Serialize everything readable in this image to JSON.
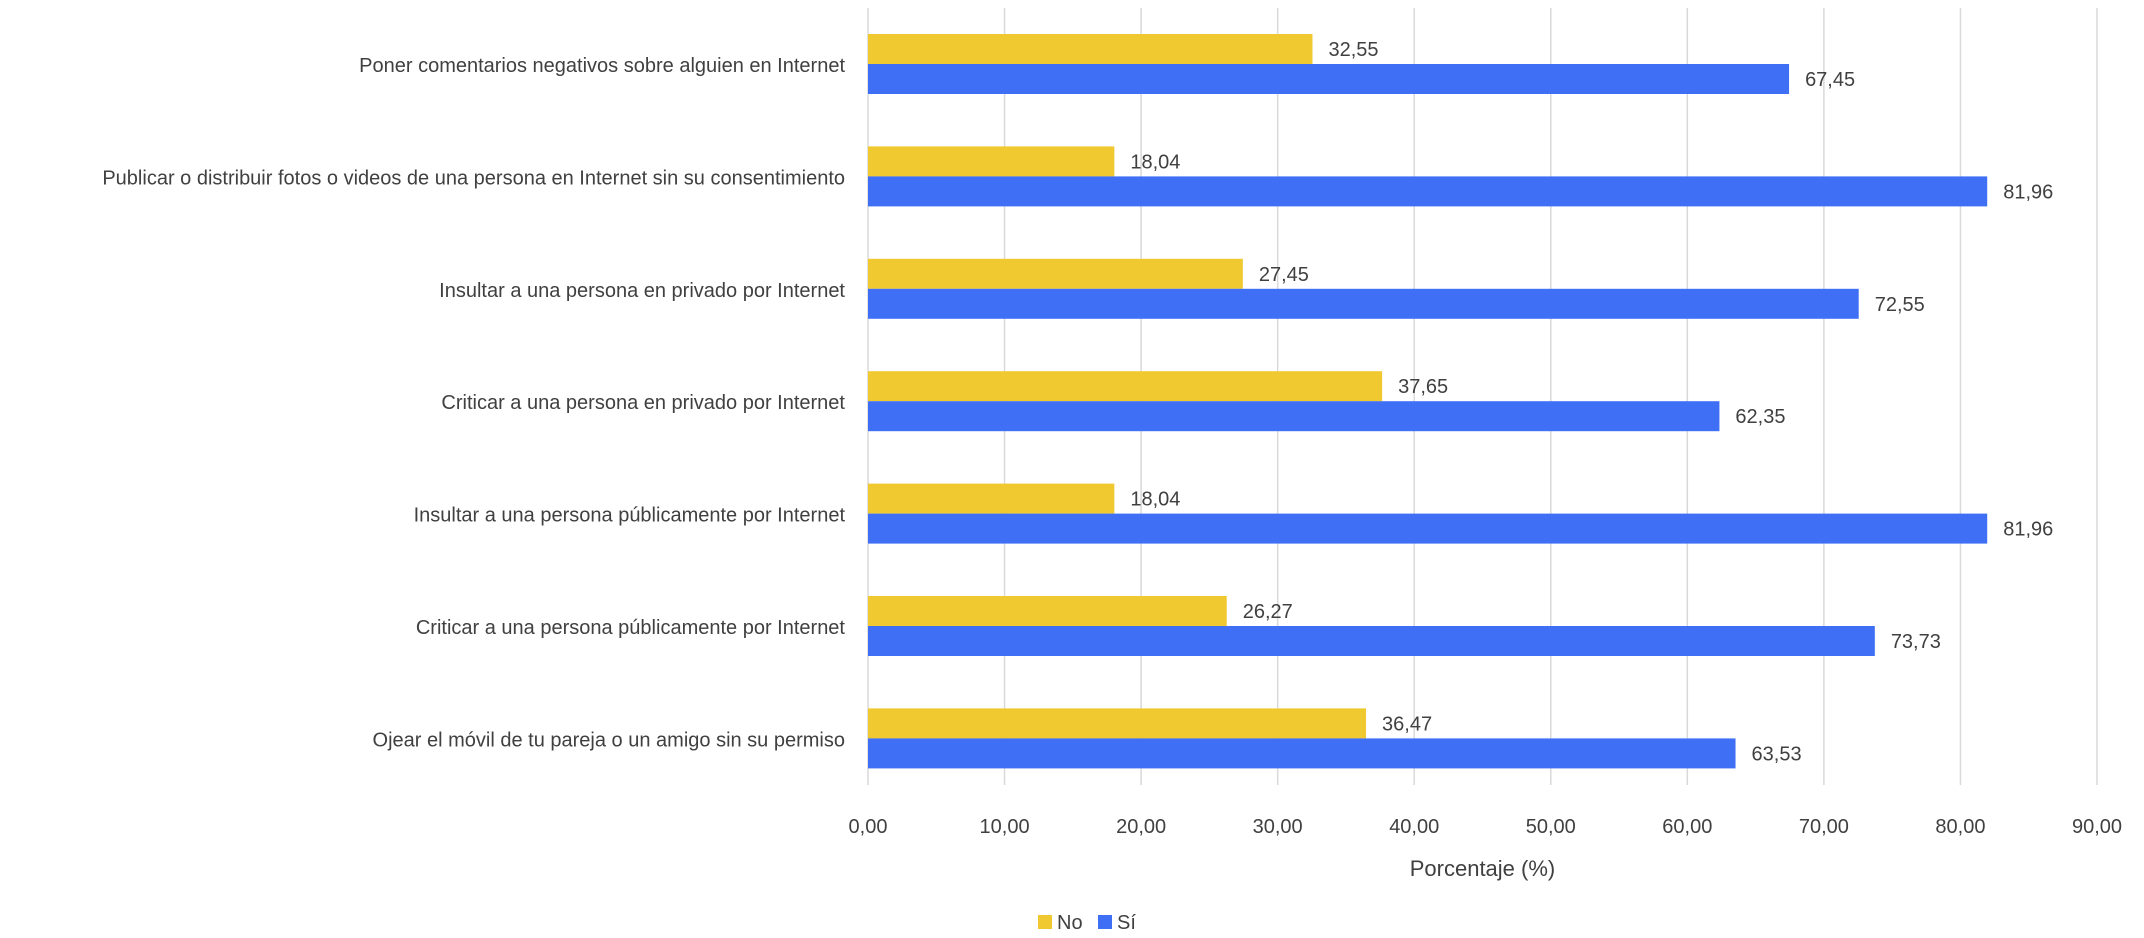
{
  "chart_data": {
    "type": "bar",
    "orientation": "horizontal",
    "categories": [
      "Poner comentarios negativos sobre alguien en Internet",
      "Publicar o distribuir fotos o videos de una persona en Internet sin su consentimiento",
      "Insultar a una persona en privado por Internet",
      "Criticar a una persona en privado por Internet",
      "Insultar a una persona públicamente por Internet",
      "Criticar a una persona públicamente por Internet",
      "Ojear el móvil de tu pareja o un amigo sin su permiso"
    ],
    "series": [
      {
        "name": "No",
        "color": "#F0C930",
        "values": [
          32.55,
          18.04,
          27.45,
          37.65,
          18.04,
          26.27,
          36.47
        ],
        "labels": [
          "32,55",
          "18,04",
          "27,45",
          "37,65",
          "18,04",
          "26,27",
          "36,47"
        ]
      },
      {
        "name": "Sí",
        "color": "#3F6FF5",
        "values": [
          67.45,
          81.96,
          72.55,
          62.35,
          81.96,
          73.73,
          63.53
        ],
        "labels": [
          "67,45",
          "81,96",
          "72,55",
          "62,35",
          "81,96",
          "73,73",
          "63,53"
        ]
      }
    ],
    "xlabel": "Porcentaje (%)",
    "xlim": [
      0,
      90
    ],
    "xticks": [
      0,
      10,
      20,
      30,
      40,
      50,
      60,
      70,
      80,
      90
    ],
    "xtick_labels": [
      "0,00",
      "10,00",
      "20,00",
      "30,00",
      "40,00",
      "50,00",
      "60,00",
      "70,00",
      "80,00",
      "90,00"
    ],
    "grid": "vertical",
    "legend": "bottom-center",
    "gridColor": "#D9D9D9"
  }
}
